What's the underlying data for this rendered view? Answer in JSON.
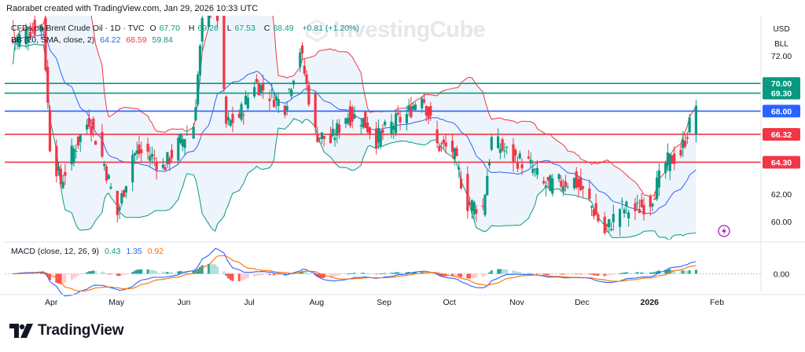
{
  "header": {
    "attribution": "Raorabet created with TradingView.com, Jan 29, 2026 10:33 UTC"
  },
  "symbol": {
    "name": "CFDs on Brent Crude Oil · 1D · TVC",
    "ohlc": [
      {
        "k": "O",
        "v": "67.70"
      },
      {
        "k": "H",
        "v": "69.26"
      },
      {
        "k": "L",
        "v": "67.53"
      },
      {
        "k": "C",
        "v": "68.49"
      }
    ],
    "change": "+0.81 (+1.20%)"
  },
  "bb_legend": {
    "label": "BB (20, SMA, close, 2)",
    "basis": "64.22",
    "upper": "68.59",
    "lower": "59.84"
  },
  "macd_legend": {
    "label": "MACD (close, 12, 26, 9)",
    "hist": "0.43",
    "macd": "1.35",
    "signal": "0.92"
  },
  "units": [
    "USD",
    "BLL"
  ],
  "watermark": "InvestingCube",
  "brand": "TradingView",
  "colors": {
    "up": "#089981",
    "down": "#f23645",
    "bb_basis": "#2962ff",
    "bb_upper": "#f23645",
    "bb_lower": "#089981",
    "bb_fill": "#eef4fb",
    "macd_line": "#2962ff",
    "signal_line": "#ff6d00",
    "level_green": "#089981",
    "level_blue": "#2962ff",
    "level_red": "#f23645"
  },
  "chart_data": {
    "type": "candlestick",
    "title": "CFDs on Brent Crude Oil · 1D · TVC",
    "price_axis": {
      "ticks": [
        72.0,
        62.0,
        60.0
      ],
      "ylim": [
        58.7,
        74.9
      ]
    },
    "macd_axis": {
      "ticks": [
        0.0
      ],
      "ylim": [
        -2.2,
        3.4
      ]
    },
    "time_axis": [
      "Apr",
      "May",
      "Jun",
      "Jul",
      "Aug",
      "Sep",
      "Oct",
      "Nov",
      "Dec",
      "2026",
      "Feb"
    ],
    "horizontal_levels": [
      {
        "price": 70.0,
        "label": "70.00",
        "color": "green"
      },
      {
        "price": 69.3,
        "label": "69.30",
        "color": "green"
      },
      {
        "price": 68.0,
        "label": "68.00",
        "color": "blue"
      },
      {
        "price": 66.32,
        "label": "66.32",
        "color": "red"
      },
      {
        "price": 64.3,
        "label": "64.30",
        "color": "red"
      }
    ],
    "close_series": [
      {
        "d": "2025-03-18",
        "c": 73.0
      },
      {
        "d": "2025-03-25",
        "c": 73.8
      },
      {
        "d": "2025-04-01",
        "c": 74.2
      },
      {
        "d": "2025-04-04",
        "c": 65.6
      },
      {
        "d": "2025-04-09",
        "c": 62.8
      },
      {
        "d": "2025-04-14",
        "c": 64.9
      },
      {
        "d": "2025-04-22",
        "c": 67.4
      },
      {
        "d": "2025-04-29",
        "c": 64.2
      },
      {
        "d": "2025-05-05",
        "c": 60.5
      },
      {
        "d": "2025-05-12",
        "c": 64.9
      },
      {
        "d": "2025-05-19",
        "c": 65.0
      },
      {
        "d": "2025-05-26",
        "c": 63.9
      },
      {
        "d": "2025-06-02",
        "c": 65.6
      },
      {
        "d": "2025-06-09",
        "c": 67.0
      },
      {
        "d": "2025-06-13",
        "c": 74.2
      },
      {
        "d": "2025-06-19",
        "c": 76.8
      },
      {
        "d": "2025-06-24",
        "c": 67.0
      },
      {
        "d": "2025-06-30",
        "c": 67.6
      },
      {
        "d": "2025-07-07",
        "c": 70.1
      },
      {
        "d": "2025-07-14",
        "c": 69.2
      },
      {
        "d": "2025-07-21",
        "c": 68.4
      },
      {
        "d": "2025-07-28",
        "c": 72.5
      },
      {
        "d": "2025-08-04",
        "c": 66.4
      },
      {
        "d": "2025-08-11",
        "c": 65.8
      },
      {
        "d": "2025-08-18",
        "c": 67.7
      },
      {
        "d": "2025-08-25",
        "c": 67.5
      },
      {
        "d": "2025-09-01",
        "c": 66.0
      },
      {
        "d": "2025-09-08",
        "c": 67.0
      },
      {
        "d": "2025-09-15",
        "c": 67.7
      },
      {
        "d": "2025-09-22",
        "c": 69.4
      },
      {
        "d": "2025-09-29",
        "c": 65.5
      },
      {
        "d": "2025-10-06",
        "c": 65.2
      },
      {
        "d": "2025-10-13",
        "c": 61.3
      },
      {
        "d": "2025-10-20",
        "c": 61.0
      },
      {
        "d": "2025-10-24",
        "c": 65.9
      },
      {
        "d": "2025-11-03",
        "c": 64.6
      },
      {
        "d": "2025-11-10",
        "c": 64.2
      },
      {
        "d": "2025-11-17",
        "c": 62.6
      },
      {
        "d": "2025-11-24",
        "c": 62.8
      },
      {
        "d": "2025-12-01",
        "c": 63.0
      },
      {
        "d": "2025-12-08",
        "c": 61.4
      },
      {
        "d": "2025-12-15",
        "c": 59.2
      },
      {
        "d": "2025-12-22",
        "c": 61.0
      },
      {
        "d": "2025-12-29",
        "c": 60.8
      },
      {
        "d": "2026-01-05",
        "c": 61.5
      },
      {
        "d": "2026-01-12",
        "c": 64.2
      },
      {
        "d": "2026-01-19",
        "c": 65.0
      },
      {
        "d": "2026-01-26",
        "c": 68.5
      }
    ]
  }
}
